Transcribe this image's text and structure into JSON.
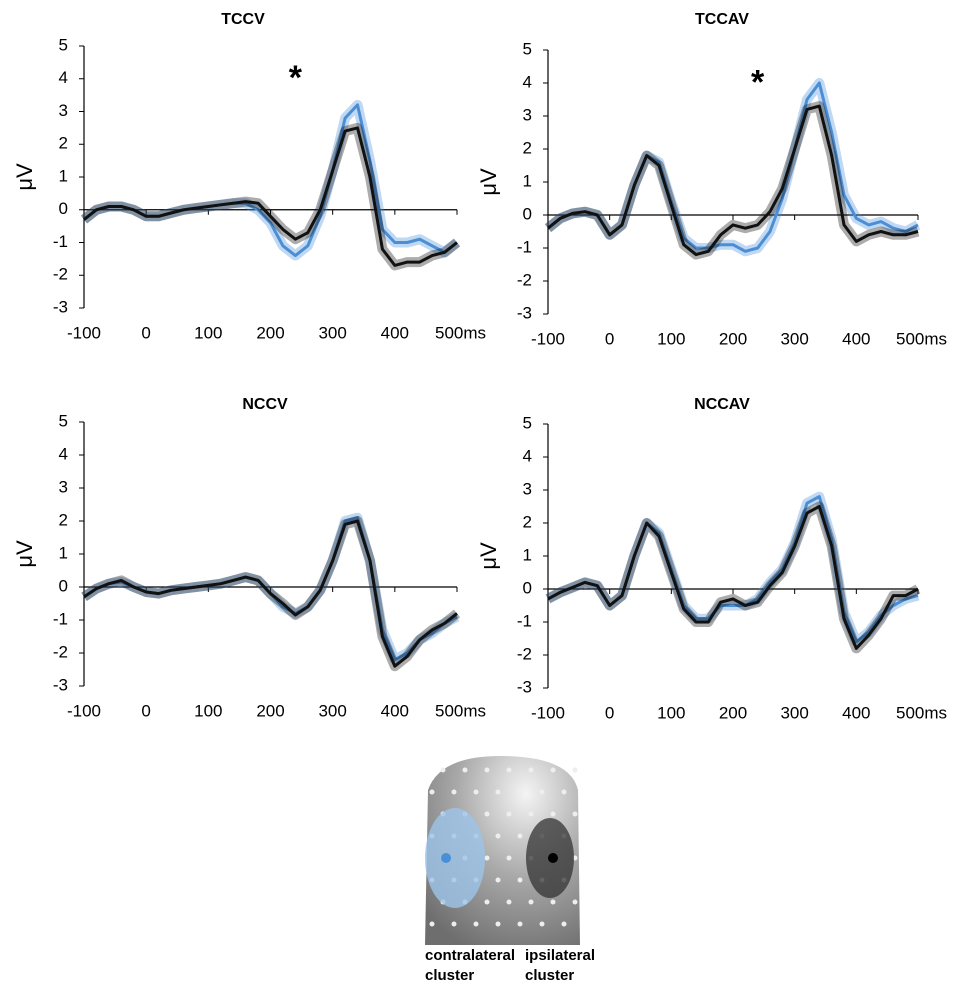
{
  "chart_data": [
    {
      "type": "line",
      "title": "TCCV",
      "y_label": "μV",
      "x": [
        -100,
        -80,
        -60,
        -40,
        -20,
        0,
        20,
        40,
        60,
        80,
        100,
        120,
        140,
        160,
        180,
        200,
        220,
        240,
        260,
        280,
        300,
        320,
        340,
        360,
        380,
        400,
        420,
        440,
        460,
        480,
        500
      ],
      "series": [
        {
          "color": "#4a8fd6",
          "values": [
            -0.3,
            0,
            0.1,
            0.1,
            0,
            -0.2,
            -0.2,
            -0.1,
            0,
            0.05,
            0.1,
            0.15,
            0.2,
            0.2,
            0,
            -0.4,
            -1.1,
            -1.4,
            -1.1,
            -0.2,
            1.2,
            2.8,
            3.2,
            1.5,
            -0.6,
            -1.0,
            -1.0,
            -0.9,
            -1.1,
            -1.3,
            -1.0
          ]
        },
        {
          "color": "#111111",
          "values": [
            -0.3,
            0,
            0.1,
            0.1,
            0,
            -0.2,
            -0.2,
            -0.1,
            0,
            0.05,
            0.1,
            0.15,
            0.2,
            0.25,
            0.2,
            -0.2,
            -0.6,
            -0.9,
            -0.7,
            0,
            1.2,
            2.4,
            2.5,
            1.0,
            -1.2,
            -1.7,
            -1.6,
            -1.6,
            -1.4,
            -1.3,
            -1.0
          ]
        }
      ],
      "annotations": [
        {
          "text": "*",
          "x": 240,
          "y": 4.2
        }
      ],
      "xlim": [
        -100,
        500
      ],
      "xticks": [
        -100,
        0,
        100,
        200,
        300,
        400,
        {
          "value": 500,
          "label": "500ms"
        }
      ],
      "ylim": [
        -3,
        5
      ],
      "yticks": [
        -3,
        -2,
        -1,
        0,
        1,
        2,
        3,
        4,
        5
      ]
    },
    {
      "type": "line",
      "title": "TCCAV",
      "y_label": "μV",
      "x": [
        -100,
        -80,
        -60,
        -40,
        -20,
        0,
        20,
        40,
        60,
        80,
        100,
        120,
        140,
        160,
        180,
        200,
        220,
        240,
        260,
        280,
        300,
        320,
        340,
        360,
        380,
        400,
        420,
        440,
        460,
        480,
        500
      ],
      "series": [
        {
          "color": "#4a8fd6",
          "values": [
            -0.4,
            -0.1,
            0.05,
            0.1,
            0,
            -0.6,
            -0.3,
            0.9,
            1.8,
            1.6,
            0.4,
            -0.7,
            -1.0,
            -1.0,
            -0.9,
            -0.9,
            -1.1,
            -1.0,
            -0.5,
            0.5,
            2.0,
            3.5,
            4.0,
            2.5,
            0.6,
            -0.1,
            -0.3,
            -0.2,
            -0.4,
            -0.5,
            -0.3
          ]
        },
        {
          "color": "#111111",
          "values": [
            -0.4,
            -0.1,
            0.05,
            0.1,
            0,
            -0.6,
            -0.3,
            0.9,
            1.8,
            1.5,
            0.3,
            -0.9,
            -1.2,
            -1.1,
            -0.6,
            -0.3,
            -0.4,
            -0.3,
            0.1,
            0.8,
            2.0,
            3.2,
            3.3,
            1.8,
            -0.3,
            -0.8,
            -0.6,
            -0.5,
            -0.6,
            -0.6,
            -0.5
          ]
        }
      ],
      "annotations": [
        {
          "text": "*",
          "x": 240,
          "y": 4.2
        }
      ],
      "xlim": [
        -100,
        500
      ],
      "xticks": [
        -100,
        0,
        100,
        200,
        300,
        400,
        {
          "value": 500,
          "label": "500ms"
        }
      ],
      "ylim": [
        -3,
        5
      ],
      "yticks": [
        -3,
        -2,
        -1,
        0,
        1,
        2,
        3,
        4,
        5
      ]
    },
    {
      "type": "line",
      "title": "NCCV",
      "y_label": "μV",
      "x": [
        -100,
        -80,
        -60,
        -40,
        -20,
        0,
        20,
        40,
        60,
        80,
        100,
        120,
        140,
        160,
        180,
        200,
        220,
        240,
        260,
        280,
        300,
        320,
        340,
        360,
        380,
        400,
        420,
        440,
        460,
        480,
        500
      ],
      "series": [
        {
          "color": "#4a8fd6",
          "values": [
            -0.3,
            -0.05,
            0.1,
            0.15,
            0,
            -0.15,
            -0.2,
            -0.1,
            -0.05,
            0,
            0.05,
            0.1,
            0.2,
            0.3,
            0.2,
            -0.2,
            -0.6,
            -0.8,
            -0.6,
            -0.1,
            0.8,
            2.0,
            2.1,
            0.8,
            -1.3,
            -2.2,
            -2.0,
            -1.6,
            -1.4,
            -1.1,
            -0.9
          ]
        },
        {
          "color": "#111111",
          "values": [
            -0.3,
            -0.05,
            0.1,
            0.2,
            0,
            -0.15,
            -0.2,
            -0.1,
            -0.05,
            0,
            0.05,
            0.1,
            0.2,
            0.3,
            0.2,
            -0.2,
            -0.5,
            -0.85,
            -0.6,
            -0.1,
            0.8,
            1.9,
            2.0,
            0.8,
            -1.5,
            -2.4,
            -2.1,
            -1.6,
            -1.3,
            -1.1,
            -0.8
          ]
        }
      ],
      "xlim": [
        -100,
        500
      ],
      "xticks": [
        -100,
        0,
        100,
        200,
        300,
        400,
        {
          "value": 500,
          "label": "500ms"
        }
      ],
      "ylim": [
        -3,
        5
      ],
      "yticks": [
        -3,
        -2,
        -1,
        0,
        1,
        2,
        3,
        4,
        5
      ]
    },
    {
      "type": "line",
      "title": "NCCAV",
      "y_label": "μV",
      "x": [
        -100,
        -80,
        -60,
        -40,
        -20,
        0,
        20,
        40,
        60,
        80,
        100,
        120,
        140,
        160,
        180,
        200,
        220,
        240,
        260,
        280,
        300,
        320,
        340,
        360,
        380,
        400,
        420,
        440,
        460,
        480,
        500
      ],
      "series": [
        {
          "color": "#4a8fd6",
          "values": [
            -0.3,
            -0.1,
            0.05,
            0.2,
            0.1,
            -0.5,
            -0.2,
            1.0,
            2.0,
            1.7,
            0.6,
            -0.5,
            -0.9,
            -0.9,
            -0.5,
            -0.5,
            -0.5,
            -0.3,
            0.2,
            0.6,
            1.4,
            2.6,
            2.8,
            1.5,
            -0.7,
            -1.6,
            -1.3,
            -0.8,
            -0.5,
            -0.3,
            -0.2
          ]
        },
        {
          "color": "#111111",
          "values": [
            -0.3,
            -0.1,
            0.05,
            0.2,
            0.1,
            -0.5,
            -0.2,
            1.0,
            2.0,
            1.6,
            0.5,
            -0.6,
            -1.0,
            -1.0,
            -0.4,
            -0.3,
            -0.5,
            -0.4,
            0.1,
            0.5,
            1.3,
            2.3,
            2.5,
            1.3,
            -0.9,
            -1.8,
            -1.4,
            -0.9,
            -0.2,
            -0.2,
            0
          ]
        }
      ],
      "xlim": [
        -100,
        500
      ],
      "xticks": [
        -100,
        0,
        100,
        200,
        300,
        400,
        {
          "value": 500,
          "label": "500ms"
        }
      ],
      "ylim": [
        -3,
        5
      ],
      "yticks": [
        -3,
        -2,
        -1,
        0,
        1,
        2,
        3,
        4,
        5
      ]
    }
  ],
  "scalp_map": {
    "labels": [
      [
        "contralateral",
        "cluster"
      ],
      [
        "ipsilateral",
        "cluster"
      ]
    ]
  }
}
